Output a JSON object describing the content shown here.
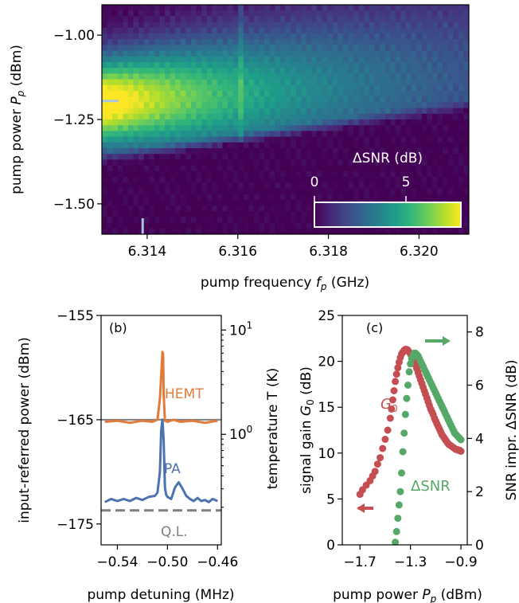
{
  "colors": {
    "viridis": [
      "#440154",
      "#482878",
      "#3e4989",
      "#31688e",
      "#26828e",
      "#1f9e89",
      "#35b779",
      "#6ece58",
      "#b5de2b",
      "#fde725"
    ],
    "hemt": "#e07b39",
    "pa": "#4c72b0",
    "ql": "#7f7f7f",
    "gain": "#c44e52",
    "dsnr": "#55a868",
    "marker": "#a8c4e0"
  },
  "chart_data": [
    {
      "id": "a",
      "type": "heatmap",
      "xlabel_main": "pump frequency ",
      "xlabel_sym": "f",
      "xlabel_sub": "p",
      "xlabel_unit": " (GHz)",
      "ylabel_main": "pump power ",
      "ylabel_sym": "P",
      "ylabel_sub": "p",
      "ylabel_unit": " (dBm)",
      "xlim": [
        6.313,
        6.3211
      ],
      "ylim": [
        -1.59,
        -0.91
      ],
      "xticks": [
        6.314,
        6.316,
        6.318,
        6.32
      ],
      "xticklabels": [
        "6.314",
        "6.316",
        "6.318",
        "6.320"
      ],
      "yticks": [
        -1.0,
        -1.25,
        -1.5
      ],
      "yticklabels": [
        "−1.00",
        "−1.25",
        "−1.50"
      ],
      "colorbar": {
        "label": "ΔSNR (dB)",
        "range": [
          0,
          8
        ],
        "ticks": [
          0,
          5
        ],
        "ticklabels": [
          "0",
          "5"
        ]
      },
      "marker_y": -1.195,
      "marker_x": 6.3139
    },
    {
      "id": "b",
      "type": "line",
      "panel_label": "(b)",
      "xlabel": "pump detuning (MHz)",
      "ylabel": "input-referred power (dBm)",
      "ylabel_right": "temperature T (K)",
      "xlim": [
        -0.553,
        -0.457
      ],
      "ylim": [
        -177,
        -155
      ],
      "xticks": [
        -0.54,
        -0.5,
        -0.46
      ],
      "xticklabels": [
        "−0.54",
        "−0.50",
        "−0.46"
      ],
      "yticks": [
        -155,
        -165,
        -175
      ],
      "yticklabels": [
        "−155",
        "−165",
        "−175"
      ],
      "right_ticks": [
        {
          "y": -156.4,
          "base": "10",
          "exp": "1"
        },
        {
          "y": -166.4,
          "base": "10",
          "exp": "0"
        }
      ],
      "hemt_level": -165,
      "ql_level": -173.7,
      "series": [
        {
          "name": "HEMT",
          "x": [
            -0.55,
            -0.54,
            -0.53,
            -0.52,
            -0.512,
            -0.508,
            -0.506,
            -0.504,
            -0.5035,
            -0.503,
            -0.502,
            -0.5,
            -0.495,
            -0.49,
            -0.48,
            -0.47,
            -0.46
          ],
          "y": [
            -165.2,
            -165.1,
            -165.3,
            -165.1,
            -165.2,
            -165.0,
            -163.0,
            -158.5,
            -158.7,
            -162.5,
            -165.1,
            -165.2,
            -165.0,
            -165.2,
            -165.1,
            -165.3,
            -165.1
          ]
        },
        {
          "name": "PA",
          "x": [
            -0.55,
            -0.545,
            -0.54,
            -0.535,
            -0.53,
            -0.525,
            -0.52,
            -0.515,
            -0.51,
            -0.508,
            -0.506,
            -0.505,
            -0.504,
            -0.503,
            -0.502,
            -0.501,
            -0.5,
            -0.497,
            -0.494,
            -0.491,
            -0.488,
            -0.485,
            -0.482,
            -0.479,
            -0.476,
            -0.473,
            -0.47,
            -0.467,
            -0.464,
            -0.46
          ],
          "y": [
            -172.9,
            -172.6,
            -172.8,
            -172.6,
            -172.8,
            -172.5,
            -172.7,
            -172.4,
            -172.3,
            -172.0,
            -170.0,
            -166.0,
            -165.0,
            -167.0,
            -171.5,
            -172.2,
            -172.4,
            -172.6,
            -171.5,
            -171.0,
            -171.6,
            -172.3,
            -172.6,
            -172.8,
            -172.5,
            -172.8,
            -172.7,
            -172.9,
            -172.6,
            -172.8
          ]
        }
      ],
      "labels": {
        "hemt": "HEMT",
        "pa": "PA",
        "ql": "Q.L."
      }
    },
    {
      "id": "c",
      "type": "scatter",
      "panel_label": "(c)",
      "xlabel_main": "pump power ",
      "xlabel_sym": "P",
      "xlabel_sub": "p",
      "xlabel_unit": " (dBm)",
      "ylabel_left_main": "signal gain ",
      "ylabel_left_sym": "G",
      "ylabel_left_sub": "0",
      "ylabel_left_unit": " (dB)",
      "ylabel_right": "SNR impr. ΔSNR (dB)",
      "xlim": [
        -1.84,
        -0.85
      ],
      "ylim_left": [
        0,
        25
      ],
      "ylim_right": [
        0,
        8.62
      ],
      "xticks": [
        -1.7,
        -1.3,
        -0.9
      ],
      "xticklabels": [
        "−1.7",
        "−1.3",
        "−0.9"
      ],
      "yticks_left": [
        0,
        5,
        10,
        15,
        20,
        25
      ],
      "yticklabels_left": [
        "0",
        "5",
        "10",
        "15",
        "20",
        "25"
      ],
      "yticks_right": [
        0,
        2,
        4,
        6,
        8
      ],
      "yticklabels_right": [
        "0",
        "2",
        "4",
        "6",
        "8"
      ],
      "label_gain_sym": "G",
      "label_gain_sub": "0",
      "label_dsnr": "ΔSNR",
      "series": [
        {
          "name": "G0",
          "axis": "left",
          "x": [
            -1.7,
            -1.68,
            -1.65,
            -1.62,
            -1.6,
            -1.58,
            -1.56,
            -1.54,
            -1.52,
            -1.5,
            -1.48,
            -1.46,
            -1.45,
            -1.44,
            -1.43,
            -1.42,
            -1.41,
            -1.4,
            -1.39,
            -1.38,
            -1.37,
            -1.36,
            -1.35,
            -1.34,
            -1.33,
            -1.32,
            -1.31,
            -1.3,
            -1.29,
            -1.28,
            -1.27,
            -1.26,
            -1.25,
            -1.24,
            -1.23,
            -1.22,
            -1.21,
            -1.2,
            -1.19,
            -1.18,
            -1.17,
            -1.16,
            -1.15,
            -1.14,
            -1.13,
            -1.12,
            -1.11,
            -1.1,
            -1.09,
            -1.08,
            -1.07,
            -1.06,
            -1.05,
            -1.04,
            -1.03,
            -1.02,
            -1.01,
            -1.0,
            -0.99,
            -0.98,
            -0.97,
            -0.96,
            -0.95,
            -0.94,
            -0.93,
            -0.92,
            -0.91,
            -0.9
          ],
          "y": [
            5.5,
            6.0,
            6.5,
            7.0,
            7.5,
            8.0,
            8.8,
            9.5,
            10.5,
            11.5,
            12.5,
            13.8,
            14.8,
            15.8,
            16.8,
            17.8,
            18.6,
            19.3,
            19.9,
            20.4,
            20.8,
            21.0,
            21.2,
            21.3,
            21.3,
            21.2,
            21.0,
            20.8,
            20.5,
            20.2,
            19.9,
            19.6,
            19.2,
            18.8,
            18.4,
            18.0,
            17.6,
            17.2,
            16.8,
            16.4,
            16.0,
            15.6,
            15.2,
            14.8,
            14.5,
            14.2,
            13.8,
            13.5,
            13.2,
            12.9,
            12.6,
            12.3,
            12.0,
            11.8,
            11.6,
            11.4,
            11.2,
            11.0,
            10.9,
            10.8,
            10.7,
            10.6,
            10.5,
            10.4,
            10.4,
            10.3,
            10.3,
            10.2
          ]
        },
        {
          "name": "ΔSNR",
          "axis": "right",
          "x": [
            -1.42,
            -1.41,
            -1.4,
            -1.39,
            -1.38,
            -1.37,
            -1.36,
            -1.35,
            -1.34,
            -1.33,
            -1.32,
            -1.31,
            -1.3,
            -1.29,
            -1.28,
            -1.27,
            -1.26,
            -1.25,
            -1.24,
            -1.23,
            -1.22,
            -1.21,
            -1.2,
            -1.19,
            -1.18,
            -1.17,
            -1.16,
            -1.15,
            -1.14,
            -1.13,
            -1.12,
            -1.11,
            -1.1,
            -1.09,
            -1.08,
            -1.07,
            -1.06,
            -1.05,
            -1.04,
            -1.03,
            -1.02,
            -1.01,
            -1.0,
            -0.99,
            -0.98,
            -0.97,
            -0.96,
            -0.95,
            -0.94,
            -0.93,
            -0.92,
            -0.91,
            -0.9
          ],
          "y": [
            0.1,
            0.5,
            1.0,
            1.5,
            2.0,
            2.7,
            3.5,
            4.2,
            4.9,
            5.5,
            6.0,
            6.5,
            6.8,
            7.0,
            7.1,
            7.2,
            7.2,
            7.15,
            7.1,
            7.0,
            6.9,
            6.8,
            6.7,
            6.6,
            6.5,
            6.4,
            6.3,
            6.2,
            6.1,
            6.0,
            5.9,
            5.8,
            5.7,
            5.6,
            5.5,
            5.4,
            5.3,
            5.2,
            5.1,
            5.0,
            4.9,
            4.8,
            4.7,
            4.6,
            4.5,
            4.4,
            4.3,
            4.2,
            4.15,
            4.1,
            4.05,
            4.0,
            3.95
          ]
        }
      ]
    }
  ]
}
